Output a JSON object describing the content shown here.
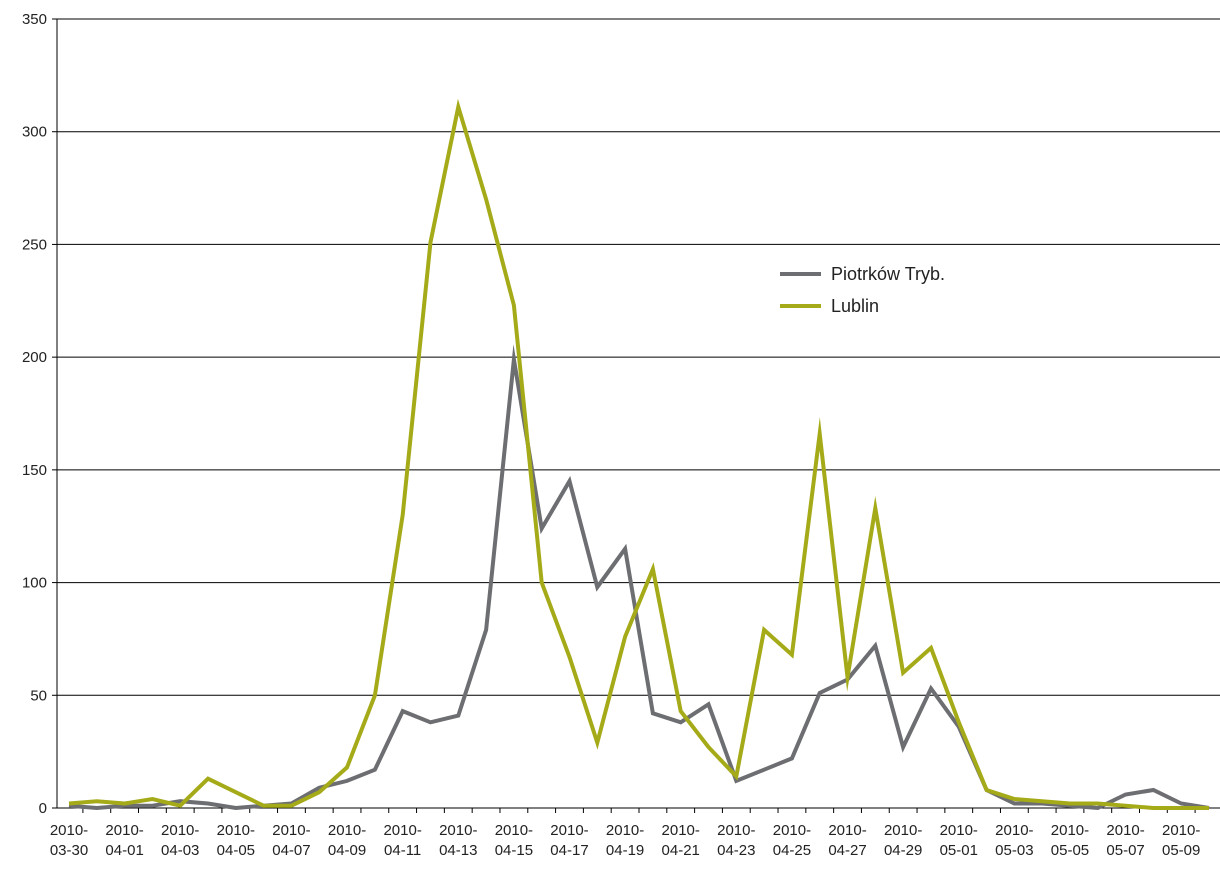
{
  "chart_data": {
    "type": "line",
    "xlabel": "",
    "ylabel": "",
    "ylim": [
      0,
      350
    ],
    "yticks": [
      0,
      50,
      100,
      150,
      200,
      250,
      300,
      350
    ],
    "grid": "horizontal",
    "legend_position": "center-right",
    "x": [
      "2010-03-30",
      "2010-03-31",
      "2010-04-01",
      "2010-04-02",
      "2010-04-03",
      "2010-04-04",
      "2010-04-05",
      "2010-04-06",
      "2010-04-07",
      "2010-04-08",
      "2010-04-09",
      "2010-04-10",
      "2010-04-11",
      "2010-04-12",
      "2010-04-13",
      "2010-04-14",
      "2010-04-15",
      "2010-04-16",
      "2010-04-17",
      "2010-04-18",
      "2010-04-19",
      "2010-04-20",
      "2010-04-21",
      "2010-04-22",
      "2010-04-23",
      "2010-04-24",
      "2010-04-25",
      "2010-04-26",
      "2010-04-27",
      "2010-04-28",
      "2010-04-29",
      "2010-04-30",
      "2010-05-01",
      "2010-05-02",
      "2010-05-03",
      "2010-05-04",
      "2010-05-05",
      "2010-05-06",
      "2010-05-07",
      "2010-05-08",
      "2010-05-09",
      "2010-05-10"
    ],
    "x_tick_labels": [
      {
        "line1": "2010-",
        "line2": "03-30"
      },
      {
        "line1": "2010-",
        "line2": "04-01"
      },
      {
        "line1": "2010-",
        "line2": "04-03"
      },
      {
        "line1": "2010-",
        "line2": "04-05"
      },
      {
        "line1": "2010-",
        "line2": "04-07"
      },
      {
        "line1": "2010-",
        "line2": "04-09"
      },
      {
        "line1": "2010-",
        "line2": "04-11"
      },
      {
        "line1": "2010-",
        "line2": "04-13"
      },
      {
        "line1": "2010-",
        "line2": "04-15"
      },
      {
        "line1": "2010-",
        "line2": "04-17"
      },
      {
        "line1": "2010-",
        "line2": "04-19"
      },
      {
        "line1": "2010-",
        "line2": "04-21"
      },
      {
        "line1": "2010-",
        "line2": "04-23"
      },
      {
        "line1": "2010-",
        "line2": "04-25"
      },
      {
        "line1": "2010-",
        "line2": "04-27"
      },
      {
        "line1": "2010-",
        "line2": "04-29"
      },
      {
        "line1": "2010-",
        "line2": "05-01"
      },
      {
        "line1": "2010-",
        "line2": "05-03"
      },
      {
        "line1": "2010-",
        "line2": "05-05"
      },
      {
        "line1": "2010-",
        "line2": "05-07"
      },
      {
        "line1": "2010-",
        "line2": "05-09"
      }
    ],
    "series": [
      {
        "name": "Piotrków Tryb.",
        "color": "#6d6e71",
        "values": [
          1,
          0,
          1,
          1,
          3,
          2,
          0,
          1,
          2,
          9,
          12,
          17,
          43,
          38,
          41,
          79,
          199,
          124,
          145,
          98,
          115,
          42,
          38,
          46,
          12,
          17,
          22,
          51,
          57,
          72,
          27,
          53,
          36,
          8,
          2,
          2,
          1,
          0,
          6,
          8,
          2,
          0
        ]
      },
      {
        "name": "Lublin",
        "color": "#a5ab18",
        "values": [
          2,
          3,
          2,
          4,
          1,
          13,
          7,
          1,
          1,
          7,
          18,
          50,
          130,
          251,
          311,
          270,
          223,
          100,
          67,
          29,
          76,
          106,
          43,
          27,
          14,
          79,
          68,
          166,
          58,
          133,
          60,
          71,
          38,
          8,
          4,
          3,
          2,
          2,
          1,
          0,
          0,
          0
        ]
      }
    ]
  }
}
